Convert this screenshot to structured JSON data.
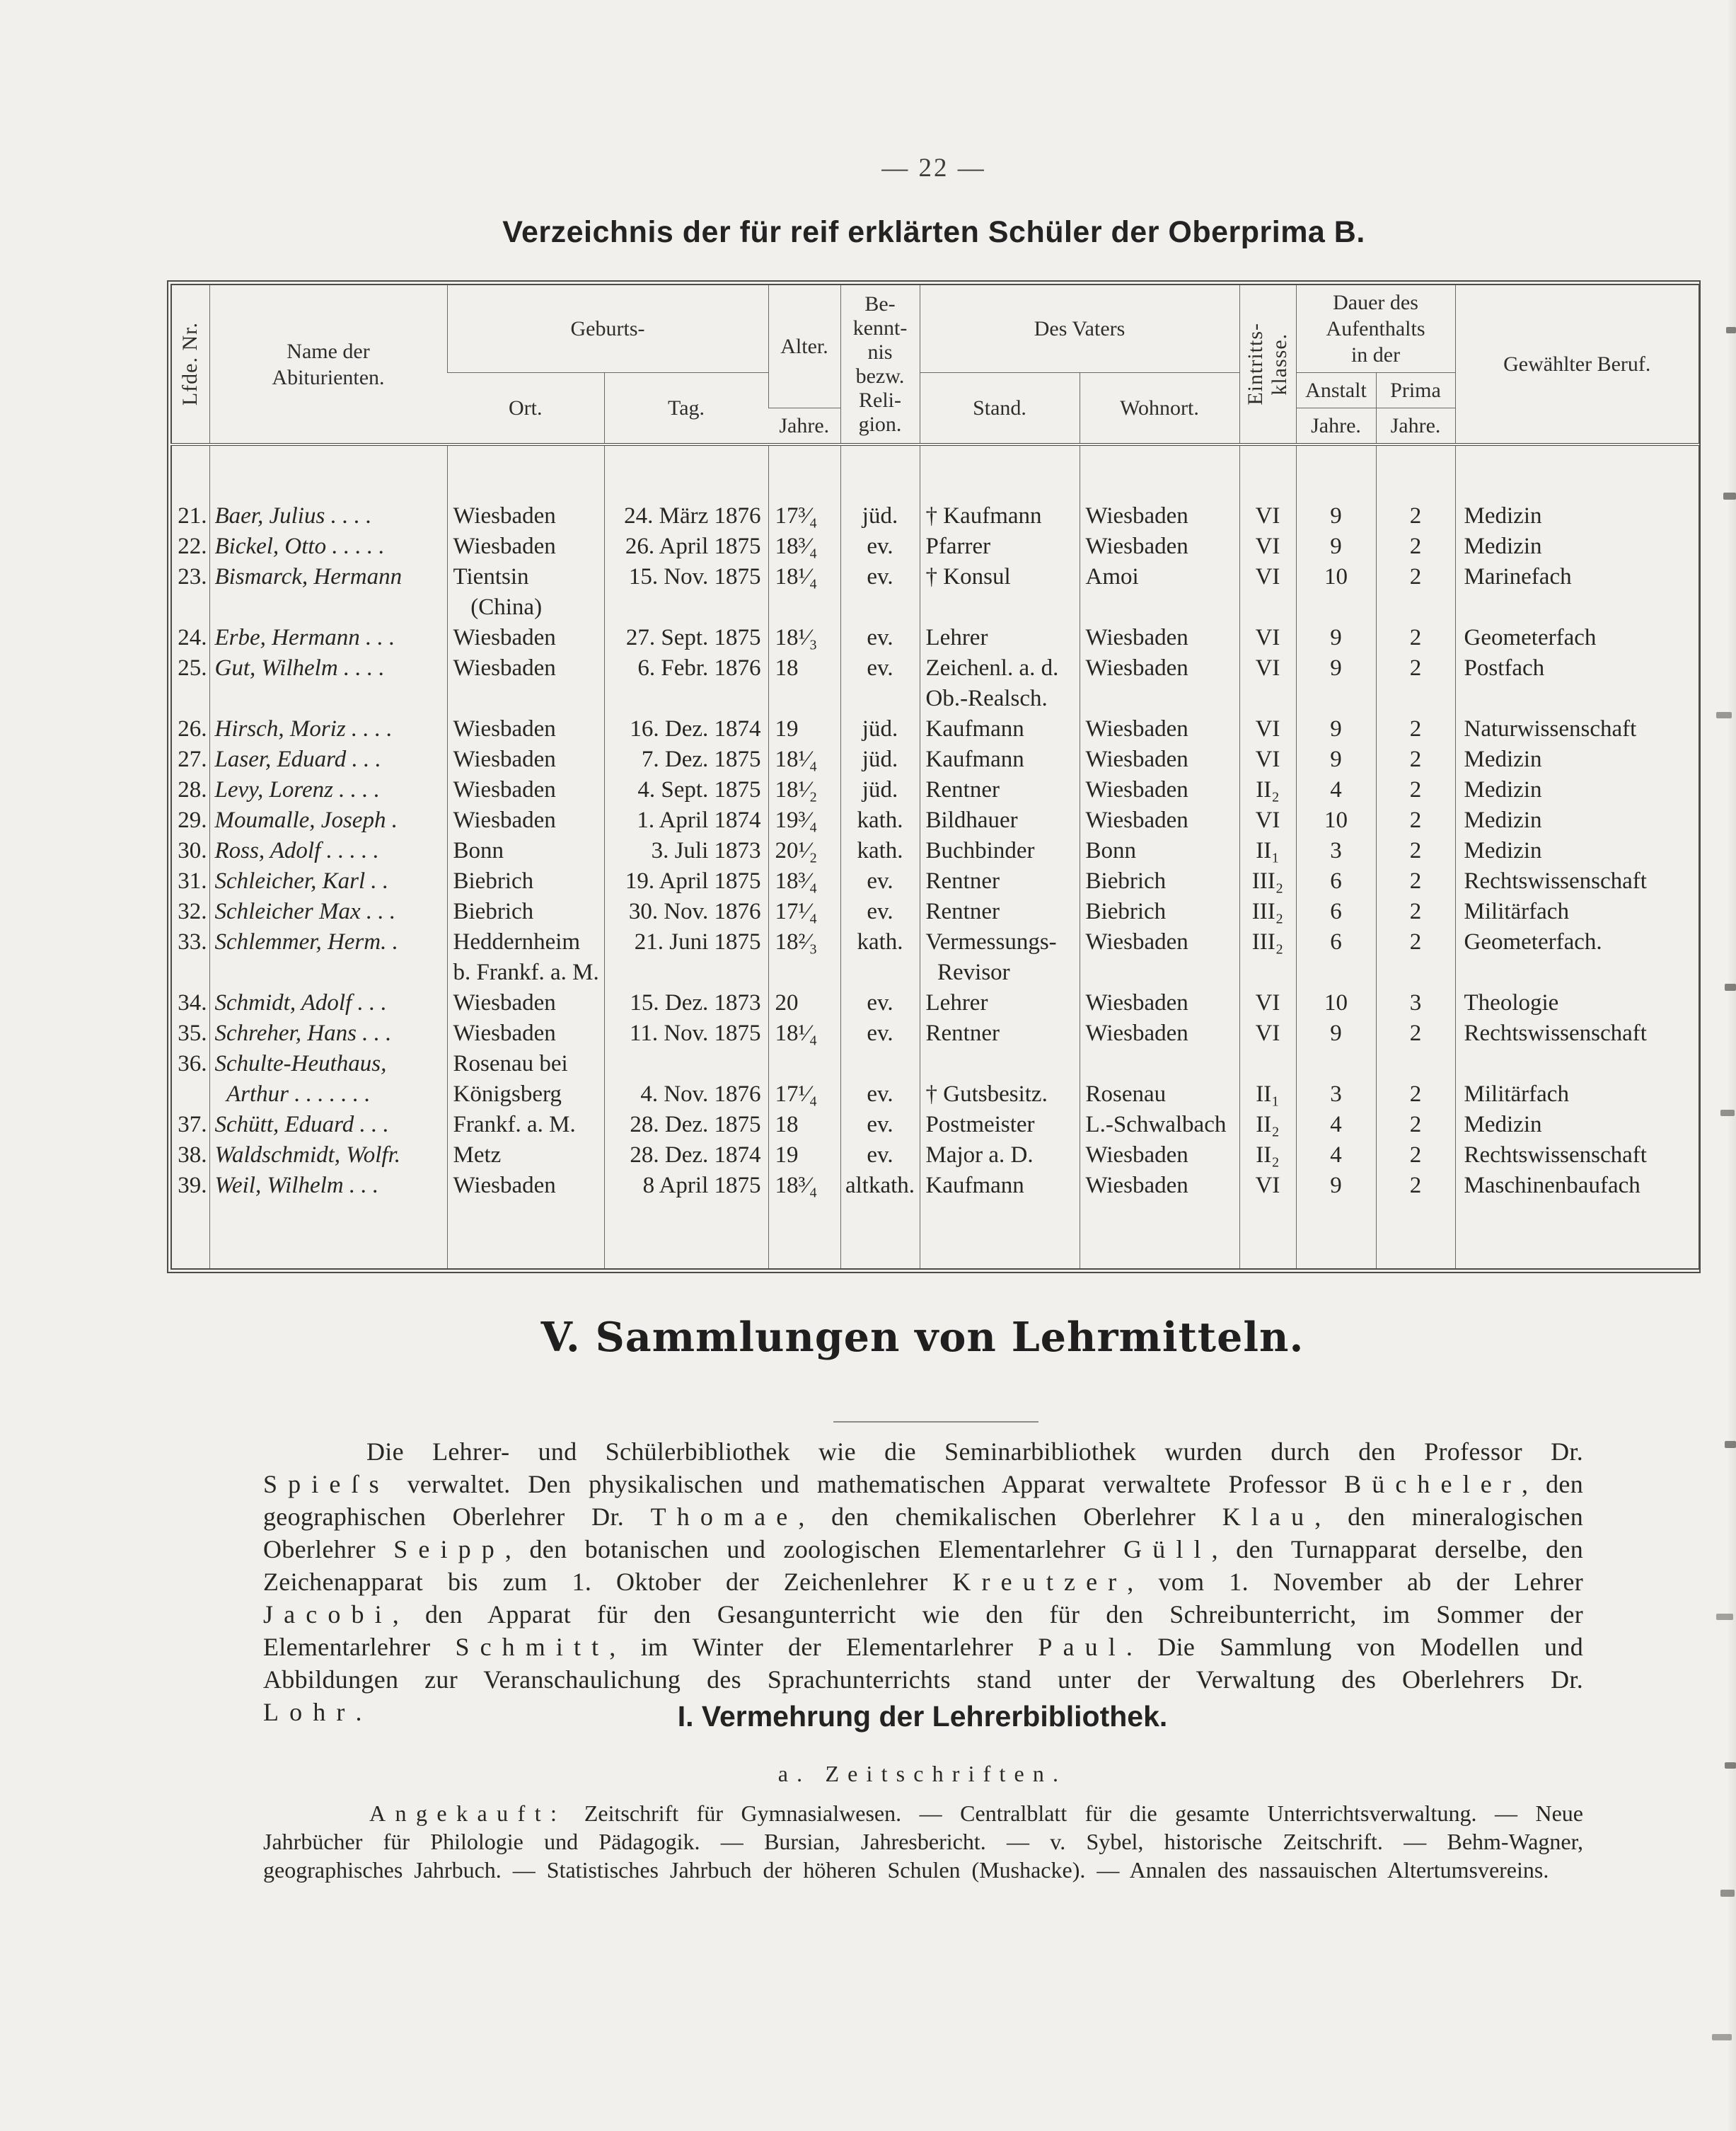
{
  "colors": {
    "paper": "#f2f0ec",
    "ink": "#2a2a2a",
    "line": "#6b6b66"
  },
  "page": {
    "number": "— 22 —"
  },
  "table": {
    "title": "Verzeichnis der für reif erklärten Schüler der Oberprima B.",
    "header": {
      "nr": "Lfde. Nr.",
      "name": "Name der\nAbiturienten.",
      "geburts": "Geburts-",
      "ort": "Ort.",
      "tag": "Tag.",
      "alter": "Alter.",
      "jahre": "Jahre.",
      "bekenntnis": "Be-\nkennt-\nnis\nbezw.\nReli-\ngion.",
      "vaters": "Des Vaters",
      "stand": "Stand.",
      "wohnort": "Wohnort.",
      "klasse": "Eintritts-\nklasse.",
      "dauer": "Dauer des\nAufenthalts\nin der",
      "anstalt": "Anstalt",
      "prima": "Prima",
      "beruf": "Gewählter Beruf."
    },
    "rows": [
      {
        "nr": "21.",
        "name": "Baer, Julius . . . .",
        "ort": "Wiesbaden",
        "tag": "24. März 1876",
        "alter": "17³⁄₄",
        "bek": "jüd.",
        "stand": "† Kaufmann",
        "wohnort": "Wiesbaden",
        "klasse": "VI",
        "anstalt": "9",
        "prima": "2",
        "beruf": "Medizin"
      },
      {
        "nr": "22.",
        "name": "Bickel, Otto . . . . .",
        "ort": "Wiesbaden",
        "tag": "26. April 1875",
        "alter": "18³⁄₄",
        "bek": "ev.",
        "stand": "Pfarrer",
        "wohnort": "Wiesbaden",
        "klasse": "VI",
        "anstalt": "9",
        "prima": "2",
        "beruf": "Medizin"
      },
      {
        "nr": "23.",
        "name": "Bismarck, Hermann",
        "ort": "Tientsin\n   (China)",
        "tag": "15. Nov. 1875",
        "alter": "18¹⁄₄",
        "bek": "ev.",
        "stand": "† Konsul",
        "wohnort": "Amoi",
        "klasse": "VI",
        "anstalt": "10",
        "prima": "2",
        "beruf": "Marinefach"
      },
      {
        "nr": "24.",
        "name": "Erbe, Hermann . . .",
        "ort": "Wiesbaden",
        "tag": "27. Sept. 1875",
        "alter": "18¹⁄₃",
        "bek": "ev.",
        "stand": "Lehrer",
        "wohnort": "Wiesbaden",
        "klasse": "VI",
        "anstalt": "9",
        "prima": "2",
        "beruf": "Geometerfach"
      },
      {
        "nr": "25.",
        "name": "Gut, Wilhelm . . . .",
        "ort": "Wiesbaden",
        "tag": "6. Febr. 1876",
        "alter": "18",
        "bek": "ev.",
        "stand": "Zeichenl. a. d.\nOb.-Realsch.",
        "wohnort": "Wiesbaden",
        "klasse": "VI",
        "anstalt": "9",
        "prima": "2",
        "beruf": "Postfach"
      },
      {
        "nr": "26.",
        "name": "Hirsch, Moriz . . . .",
        "ort": "Wiesbaden",
        "tag": "16. Dez. 1874",
        "alter": "19",
        "bek": "jüd.",
        "stand": "Kaufmann",
        "wohnort": "Wiesbaden",
        "klasse": "VI",
        "anstalt": "9",
        "prima": "2",
        "beruf": "Naturwissenschaft"
      },
      {
        "nr": "27.",
        "name": "Laser, Eduard . . .",
        "ort": "Wiesbaden",
        "tag": "7. Dez. 1875",
        "alter": "18¹⁄₄",
        "bek": "jüd.",
        "stand": "Kaufmann",
        "wohnort": "Wiesbaden",
        "klasse": "VI",
        "anstalt": "9",
        "prima": "2",
        "beruf": "Medizin"
      },
      {
        "nr": "28.",
        "name": "Levy, Lorenz . . . .",
        "ort": "Wiesbaden",
        "tag": "4. Sept. 1875",
        "alter": "18¹⁄₂",
        "bek": "jüd.",
        "stand": "Rentner",
        "wohnort": "Wiesbaden",
        "klasse": "II₂",
        "anstalt": "4",
        "prima": "2",
        "beruf": "Medizin"
      },
      {
        "nr": "29.",
        "name": "Moumalle, Joseph .",
        "ort": "Wiesbaden",
        "tag": "1. April 1874",
        "alter": "19³⁄₄",
        "bek": "kath.",
        "stand": "Bildhauer",
        "wohnort": "Wiesbaden",
        "klasse": "VI",
        "anstalt": "10",
        "prima": "2",
        "beruf": "Medizin"
      },
      {
        "nr": "30.",
        "name": "Ross, Adolf . . . . .",
        "ort": "Bonn",
        "tag": "3. Juli 1873",
        "alter": "20¹⁄₂",
        "bek": "kath.",
        "stand": "Buchbinder",
        "wohnort": "Bonn",
        "klasse": "II₁",
        "anstalt": "3",
        "prima": "2",
        "beruf": "Medizin"
      },
      {
        "nr": "31.",
        "name": "Schleicher, Karl . .",
        "ort": "Biebrich",
        "tag": "19. April 1875",
        "alter": "18³⁄₄",
        "bek": "ev.",
        "stand": "Rentner",
        "wohnort": "Biebrich",
        "klasse": "III₂",
        "anstalt": "6",
        "prima": "2",
        "beruf": "Rechtswissenschaft"
      },
      {
        "nr": "32.",
        "name": "Schleicher Max . . .",
        "ort": "Biebrich",
        "tag": "30. Nov. 1876",
        "alter": "17¹⁄₄",
        "bek": "ev.",
        "stand": "Rentner",
        "wohnort": "Biebrich",
        "klasse": "III₂",
        "anstalt": "6",
        "prima": "2",
        "beruf": "Militärfach"
      },
      {
        "nr": "33.",
        "name": "Schlemmer, Herm. .",
        "ort": "Heddernheim\nb. Frankf. a. M.",
        "tag": "21. Juni 1875",
        "alter": "18²⁄₃",
        "bek": "kath.",
        "stand": "Vermessungs-\n  Revisor",
        "wohnort": "Wiesbaden",
        "klasse": "III₂",
        "anstalt": "6",
        "prima": "2",
        "beruf": "Geometerfach."
      },
      {
        "nr": "34.",
        "name": "Schmidt, Adolf . . .",
        "ort": "Wiesbaden",
        "tag": "15. Dez. 1873",
        "alter": "20",
        "bek": "ev.",
        "stand": "Lehrer",
        "wohnort": "Wiesbaden",
        "klasse": "VI",
        "anstalt": "10",
        "prima": "3",
        "beruf": "Theologie"
      },
      {
        "nr": "35.",
        "name": "Schreher, Hans . . .",
        "ort": "Wiesbaden",
        "tag": "11. Nov. 1875",
        "alter": "18¹⁄₄",
        "bek": "ev.",
        "stand": "Rentner",
        "wohnort": "Wiesbaden",
        "klasse": "VI",
        "anstalt": "9",
        "prima": "2",
        "beruf": "Rechtswissenschaft"
      },
      {
        "nr": "36.",
        "name": "Schulte-Heuthaus,\n  Arthur . . . . . . .",
        "ort": "Rosenau bei\nKönigsberg",
        "tag": "\n4. Nov. 1876",
        "alter": "\n17¹⁄₄",
        "bek": "\nev.",
        "stand": "\n† Gutsbesitz.",
        "wohnort": "\nRosenau",
        "klasse": "\nII₁",
        "anstalt": "\n3",
        "prima": "\n2",
        "beruf": "\nMilitärfach"
      },
      {
        "nr": "37.",
        "name": "Schütt, Eduard . . .",
        "ort": "Frankf. a. M.",
        "tag": "28. Dez. 1875",
        "alter": "18",
        "bek": "ev.",
        "stand": "Postmeister",
        "wohnort": "L.-Schwalbach",
        "klasse": "II₂",
        "anstalt": "4",
        "prima": "2",
        "beruf": "Medizin"
      },
      {
        "nr": "38.",
        "name": "Waldschmidt, Wolfr.",
        "ort": "Metz",
        "tag": "28. Dez. 1874",
        "alter": "19",
        "bek": "ev.",
        "stand": "Major a. D.",
        "wohnort": "Wiesbaden",
        "klasse": "II₂",
        "anstalt": "4",
        "prima": "2",
        "beruf": "Rechtswissenschaft"
      },
      {
        "nr": "39.",
        "name": "Weil, Wilhelm . . .",
        "ort": "Wiesbaden",
        "tag": "8 April 1875",
        "alter": "18³⁄₄",
        "bek": "altkath.",
        "stand": "Kaufmann",
        "wohnort": "Wiesbaden",
        "klasse": "VI",
        "anstalt": "9",
        "prima": "2",
        "beruf": "Maschinenbaufach"
      }
    ]
  },
  "section": {
    "heading": "V. Sammlungen von Lehrmitteln.",
    "paragraph": [
      {
        "t": "Die Lehrer- und Schülerbibliothek wie die Seminarbibliothek wurden durch den Professor Dr. "
      },
      {
        "t": "Spieſs",
        "sp": true
      },
      {
        "t": " verwaltet.  Den physikalischen und mathematischen Apparat verwaltete Professor "
      },
      {
        "t": "Bücheler",
        "sp": true
      },
      {
        "t": ", den geographischen Oberlehrer Dr. "
      },
      {
        "t": "Thomae",
        "sp": true
      },
      {
        "t": ", den chemikalischen Oberlehrer "
      },
      {
        "t": "Klau",
        "sp": true
      },
      {
        "t": ", den mineralogischen Oberlehrer "
      },
      {
        "t": "Seipp",
        "sp": true
      },
      {
        "t": ", den botanischen und zoologischen Elementarlehrer "
      },
      {
        "t": "Güll",
        "sp": true
      },
      {
        "t": ", den Turnapparat derselbe, den Zeichenapparat bis zum 1. Oktober der Zeichenlehrer "
      },
      {
        "t": "Kreutzer",
        "sp": true
      },
      {
        "t": ", vom 1. November ab der Lehrer "
      },
      {
        "t": "Jacobi",
        "sp": true
      },
      {
        "t": ", den Apparat für den Gesangunterricht wie den für den Schreibunterricht, im Sommer der Elementar­lehrer "
      },
      {
        "t": "Schmitt",
        "sp": true
      },
      {
        "t": ", im Winter der Elementarlehrer "
      },
      {
        "t": "Paul",
        "sp": true
      },
      {
        "t": ".  Die Sammlung von Modellen und Abbildungen zur Veranschaulichung des Sprachunterrichts stand unter der Verwaltung des Oberlehrers Dr. "
      },
      {
        "t": "Lohr",
        "sp": true
      },
      {
        "t": "."
      }
    ],
    "sub_heading": "I. Vermehrung der Lehrerbibliothek.",
    "list_heading": "a. Zeitschriften.",
    "paragraph2": [
      {
        "t": "Angekauft:",
        "sp": true
      },
      {
        "t": " Zeitschrift für Gymnasialwesen. — Centralblatt für die gesamte Unterrichtsverwaltung. — Neue Jahrbücher für Philologie und Pädagogik. — Bursian, Jahresbericht. — v. Sybel, historische Zeitschrift. — Behm-Wagner, geographisches Jahrbuch. — Statistisches Jahrbuch der höheren Schulen (Mushacke). — Annalen des nassauischen Altertumsvereins."
      }
    ]
  }
}
